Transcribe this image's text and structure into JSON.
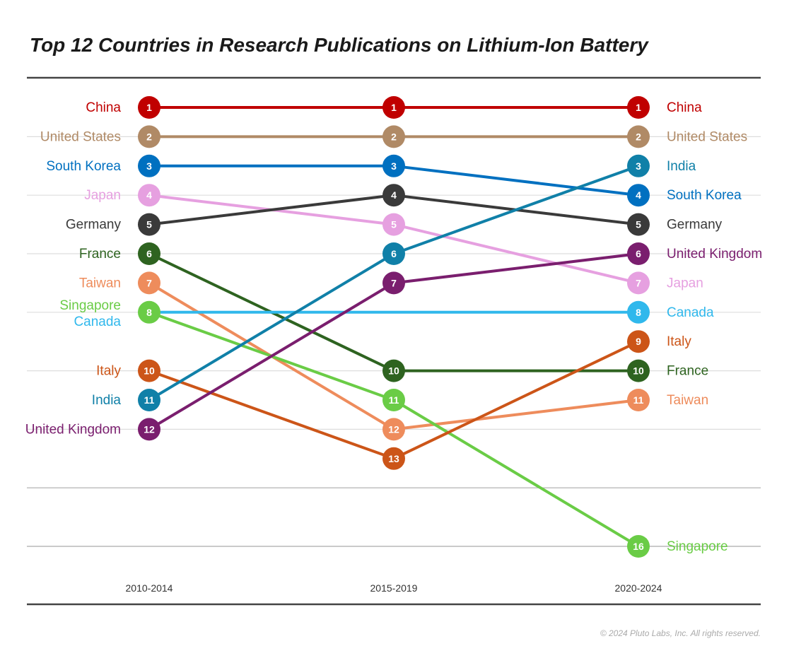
{
  "chart_data": {
    "type": "bump",
    "title": "Top 12 Countries in Research Publications on Lithium-Ion Battery",
    "categories": [
      "2010-2014",
      "2015-2019",
      "2020-2024"
    ],
    "y_axis": {
      "reversed": true,
      "range": [
        1,
        16
      ],
      "meaning": "rank"
    },
    "grid": true,
    "series": [
      {
        "name": "China",
        "color": "#c00000",
        "values": [
          1,
          1,
          1
        ]
      },
      {
        "name": "United States",
        "color": "#b08a66",
        "values": [
          2,
          2,
          2
        ]
      },
      {
        "name": "South Korea",
        "color": "#0070c0",
        "values": [
          3,
          3,
          4
        ]
      },
      {
        "name": "Japan",
        "color": "#e6a0e0",
        "values": [
          4,
          5,
          7
        ]
      },
      {
        "name": "Germany",
        "color": "#3a3a3a",
        "values": [
          5,
          4,
          5
        ]
      },
      {
        "name": "France",
        "color": "#2e6320",
        "values": [
          6,
          10,
          10
        ]
      },
      {
        "name": "Taiwan",
        "color": "#ee8c5c",
        "values": [
          7,
          12,
          11
        ]
      },
      {
        "name": "Singapore",
        "color": "#6acc46",
        "values": [
          8,
          11,
          16
        ]
      },
      {
        "name": "Canada",
        "color": "#30b8ec",
        "values": [
          8,
          null,
          8
        ]
      },
      {
        "name": "Italy",
        "color": "#cc5518",
        "values": [
          10,
          13,
          9
        ]
      },
      {
        "name": "India",
        "color": "#1080a8",
        "values": [
          11,
          6,
          3
        ]
      },
      {
        "name": "United Kingdom",
        "color": "#7a1e6e",
        "values": [
          12,
          7,
          6
        ]
      }
    ]
  },
  "copyright": "© 2024 Pluto Labs, Inc. All rights reserved."
}
